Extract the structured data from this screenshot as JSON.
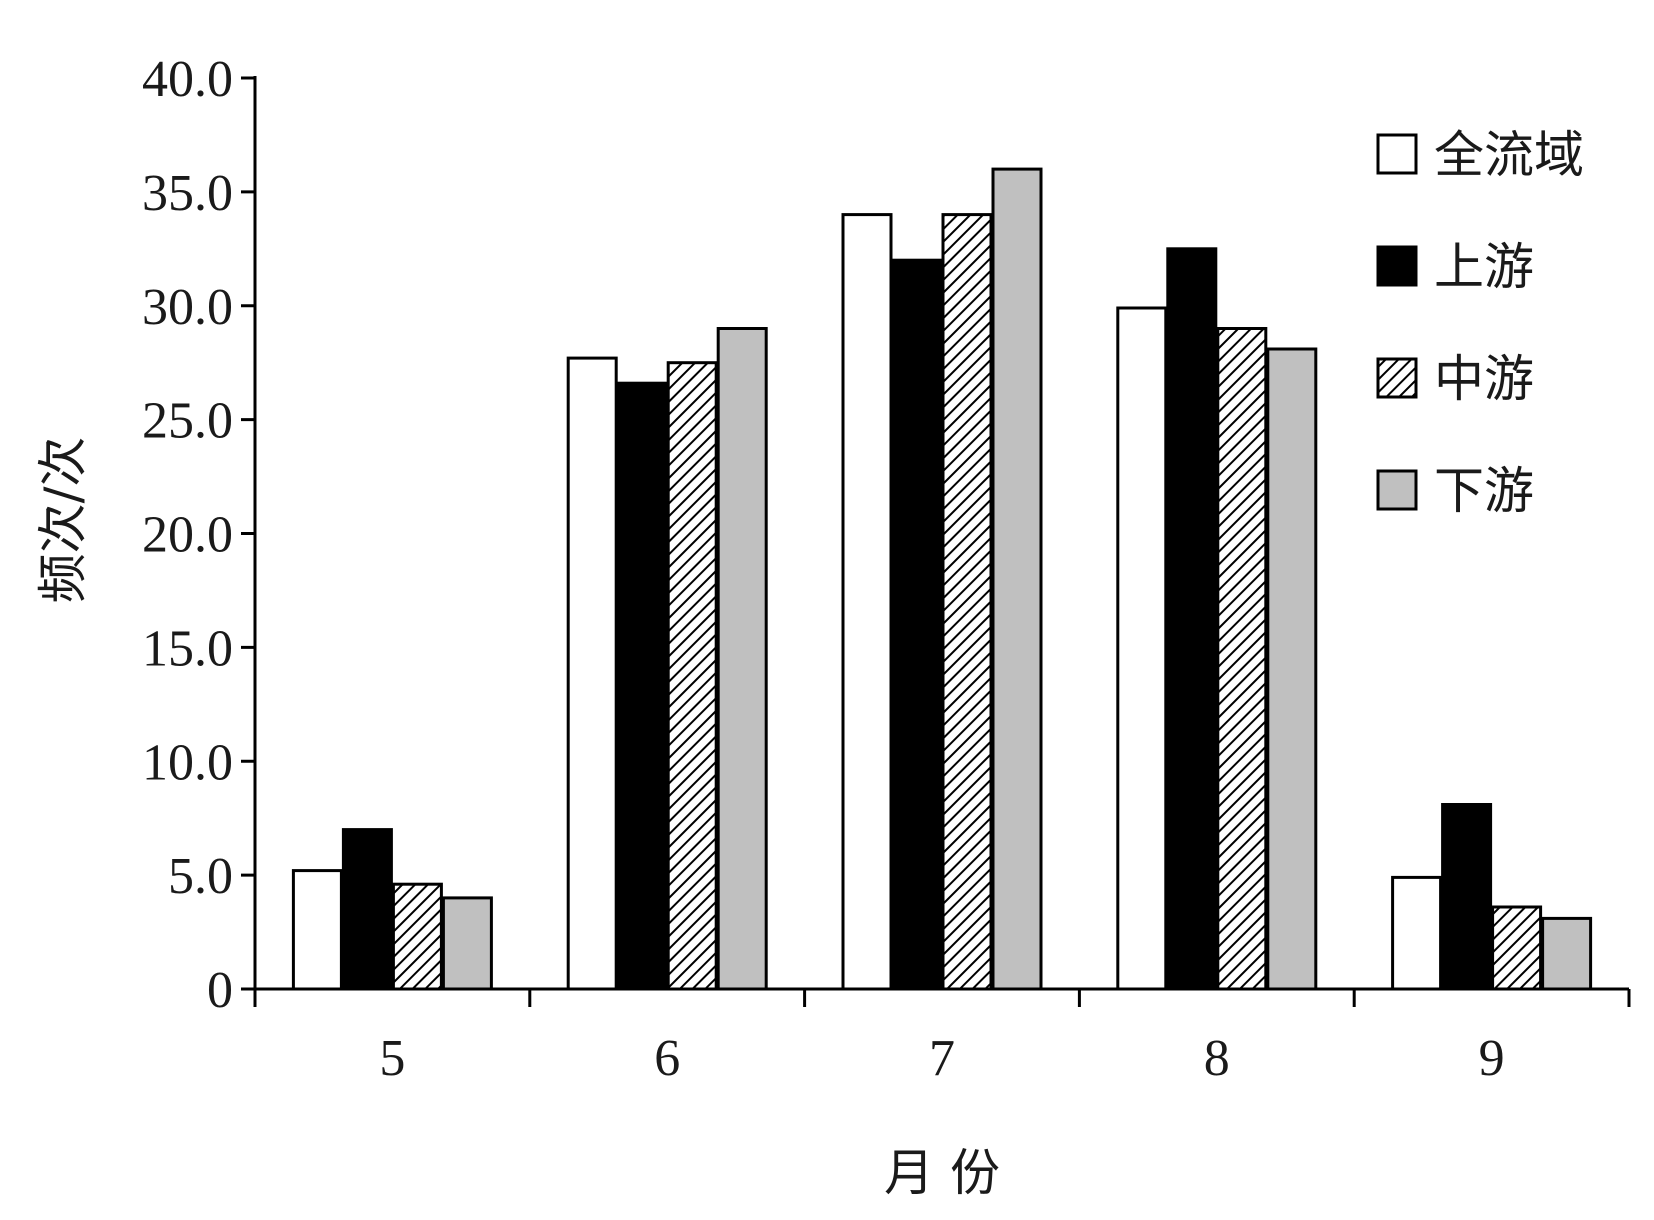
{
  "chart_data": {
    "type": "bar",
    "xlabel": "月 份",
    "ylabel": "频次/次",
    "categories": [
      "5",
      "6",
      "7",
      "8",
      "9"
    ],
    "ylim": [
      0,
      40
    ],
    "yticks": [
      "0",
      "5.0",
      "10.0",
      "15.0",
      "20.0",
      "25.0",
      "30.0",
      "35.0",
      "40.0"
    ],
    "ytick_values": [
      0,
      5,
      10,
      15,
      20,
      25,
      30,
      35,
      40
    ],
    "grid": false,
    "legend_position": "top-right",
    "series": [
      {
        "name": "全流域",
        "values": [
          5.2,
          27.7,
          34.0,
          29.9,
          4.9
        ],
        "fill": "#ffffff",
        "pattern": "none"
      },
      {
        "name": "上游",
        "values": [
          7.0,
          26.6,
          32.0,
          32.5,
          8.1
        ],
        "fill": "#000000",
        "pattern": "none"
      },
      {
        "name": "中游",
        "values": [
          4.6,
          27.5,
          34.0,
          29.0,
          3.6
        ],
        "fill": "#ffffff",
        "pattern": "diagonal-hatch"
      },
      {
        "name": "下游",
        "values": [
          4.0,
          29.0,
          36.0,
          28.1,
          3.1
        ],
        "fill": "#c0c0c0",
        "pattern": "none"
      }
    ]
  }
}
